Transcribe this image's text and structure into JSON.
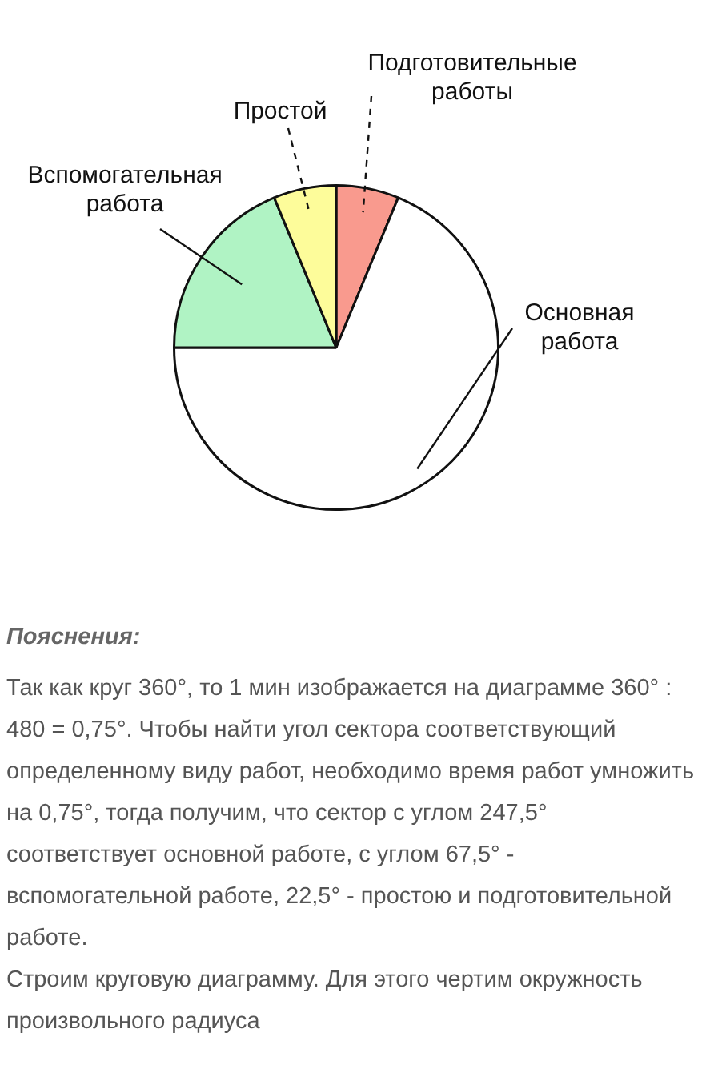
{
  "chart_data": {
    "type": "pie",
    "categories": [
      "Подготовительные работы",
      "Основная работа",
      "Вспомогательная работа",
      "Простой"
    ],
    "values": [
      6.25,
      68.75,
      18.75,
      6.25
    ],
    "colors": [
      "#f99a8e",
      "#ffffff",
      "#b0f3c4",
      "#fdfc9a"
    ],
    "legend": false,
    "annotations": [
      "Пояснения:",
      "Так как круг 360°, то 1 мин изображается на диаграмме 360° : 480 = 0,75°. Чтобы найти угол сектора соответствующий определенному виду работ, необходимо время работ умножить на 0,75°, тогда получим, что сектор с углом 247,5° соответствует основной работе, с углом 67,5° - вспомогательной работе, 22,5° - простою и подготовительной работе.",
      "Строим круговую диаграмму. Для этого чертим окружность произвольного радиуса"
    ]
  }
}
